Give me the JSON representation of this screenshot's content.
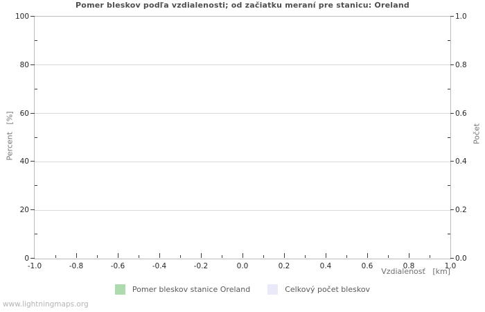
{
  "watermark": "www.lightningmaps.org",
  "chart_data": {
    "type": "line",
    "title": "Pomer bleskov podľa vzdialenosti; od začiatku meraní pre stanicu: Oreland",
    "xlabel": "Vzdialenosť   [km]",
    "ylabel_left": "Percent   [%]",
    "ylabel_right": "Počet",
    "xlim": [
      -1.0,
      1.0
    ],
    "ylim_left": [
      0,
      100
    ],
    "ylim_right": [
      0.0,
      1.0
    ],
    "x_ticks": [
      "-1.0",
      "-0.8",
      "-0.6",
      "-0.4",
      "-0.2",
      "0.0",
      "0.2",
      "0.4",
      "0.6",
      "0.8",
      "1.0"
    ],
    "y_left_ticks": [
      "0",
      "20",
      "40",
      "60",
      "80",
      "100"
    ],
    "y_right_ticks": [
      "0.0",
      "0.2",
      "0.4",
      "0.6",
      "0.8",
      "1.0"
    ],
    "grid": "horizontal-only",
    "legend_position": "bottom-center",
    "series": [
      {
        "name": "Pomer bleskov stanice Oreland",
        "color": "#aedbae",
        "values": []
      },
      {
        "name": "Celkový počet bleskov",
        "color": "#e9e9f9",
        "values": []
      }
    ],
    "colors": {
      "frame": "#bcbcbc",
      "gridline": "#d9d9d9",
      "tick": "#3a3a3a",
      "background": "#ffffff"
    }
  }
}
